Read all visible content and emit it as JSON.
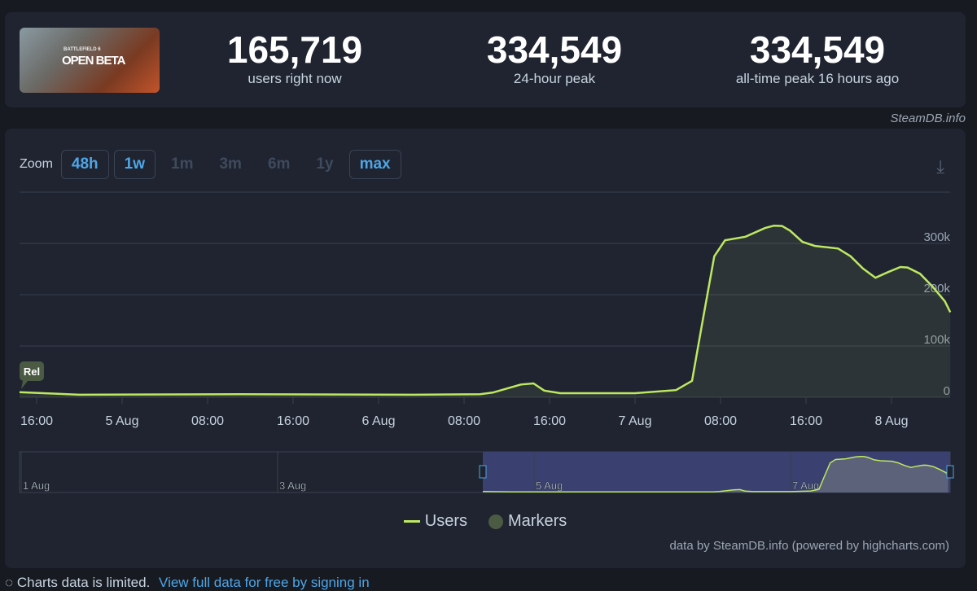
{
  "header": {
    "game_image_text": [
      "BATTLEFIELD 6",
      "OPEN BETA"
    ],
    "stats": [
      {
        "value": "165,719",
        "label": "users right now"
      },
      {
        "value": "334,549",
        "label": "24-hour peak"
      },
      {
        "value": "334,549",
        "label": "all-time peak 16 hours ago"
      }
    ],
    "credit": "SteamDB.info"
  },
  "zoom": {
    "label": "Zoom",
    "buttons": [
      {
        "label": "48h",
        "enabled": true
      },
      {
        "label": "1w",
        "enabled": true
      },
      {
        "label": "1m",
        "enabled": false
      },
      {
        "label": "3m",
        "enabled": false
      },
      {
        "label": "6m",
        "enabled": false
      },
      {
        "label": "1y",
        "enabled": false
      },
      {
        "label": "max",
        "enabled": true
      }
    ]
  },
  "download_icon": "download-icon",
  "chart_data": {
    "type": "area",
    "xlabel": "",
    "ylabel": "",
    "x_ticks": [
      "16:00",
      "5 Aug",
      "08:00",
      "16:00",
      "6 Aug",
      "08:00",
      "16:00",
      "7 Aug",
      "08:00",
      "16:00",
      "8 Aug"
    ],
    "y_ticks": [
      "0",
      "100k",
      "200k",
      "300k"
    ],
    "ylim": [
      0,
      400000
    ],
    "xlim": [
      "4 Aug 14:24",
      "8 Aug 05:30"
    ],
    "grid": true,
    "marker": {
      "label": "Rel",
      "x": "4 Aug 14:24"
    },
    "series": [
      {
        "name": "Users",
        "color": "#bde861",
        "points": [
          [
            "4 Aug 14:24",
            10000
          ],
          [
            "4 Aug 20:00",
            5000
          ],
          [
            "5 Aug 11:00",
            6000
          ],
          [
            "6 Aug 03:00",
            5000
          ],
          [
            "6 Aug 09:30",
            6000
          ],
          [
            "6 Aug 10:40",
            9000
          ],
          [
            "6 Aug 12:00",
            17000
          ],
          [
            "6 Aug 13:20",
            25000
          ],
          [
            "6 Aug 14:30",
            27000
          ],
          [
            "6 Aug 15:30",
            13000
          ],
          [
            "6 Aug 17:00",
            8000
          ],
          [
            "7 Aug 00:00",
            8000
          ],
          [
            "7 Aug 03:50",
            14000
          ],
          [
            "7 Aug 05:20",
            32000
          ],
          [
            "7 Aug 06:15",
            140000
          ],
          [
            "7 Aug 07:25",
            275000
          ],
          [
            "7 Aug 08:25",
            306000
          ],
          [
            "7 Aug 10:20",
            313000
          ],
          [
            "7 Aug 12:10",
            330000
          ],
          [
            "7 Aug 13:00",
            334549
          ],
          [
            "7 Aug 13:45",
            334000
          ],
          [
            "7 Aug 14:30",
            325000
          ],
          [
            "7 Aug 15:40",
            303000
          ],
          [
            "7 Aug 16:50",
            295000
          ],
          [
            "7 Aug 19:00",
            290000
          ],
          [
            "7 Aug 20:10",
            275000
          ],
          [
            "7 Aug 21:20",
            251000
          ],
          [
            "7 Aug 22:30",
            233000
          ],
          [
            "7 Aug 23:40",
            244000
          ],
          [
            "8 Aug 00:50",
            254000
          ],
          [
            "8 Aug 01:30",
            253000
          ],
          [
            "8 Aug 02:40",
            241000
          ],
          [
            "8 Aug 03:50",
            216000
          ],
          [
            "8 Aug 05:00",
            187000
          ],
          [
            "8 Aug 05:30",
            165719
          ]
        ]
      }
    ],
    "navigator": {
      "ticks": [
        "1 Aug",
        "3 Aug",
        "5 Aug",
        "7 Aug"
      ],
      "selected_range": [
        "4 Aug 14:24",
        "8 Aug 05:30"
      ]
    },
    "legend": [
      {
        "name": "Users",
        "color": "#bde861"
      },
      {
        "name": "Markers",
        "color": "#4b5a43"
      }
    ],
    "legend_placement": "bottom"
  },
  "chart_credit": "data by SteamDB.info (powered by highcharts.com)",
  "footer": {
    "notice": "Charts data is limited.",
    "link": "View full data for free by signing in"
  }
}
